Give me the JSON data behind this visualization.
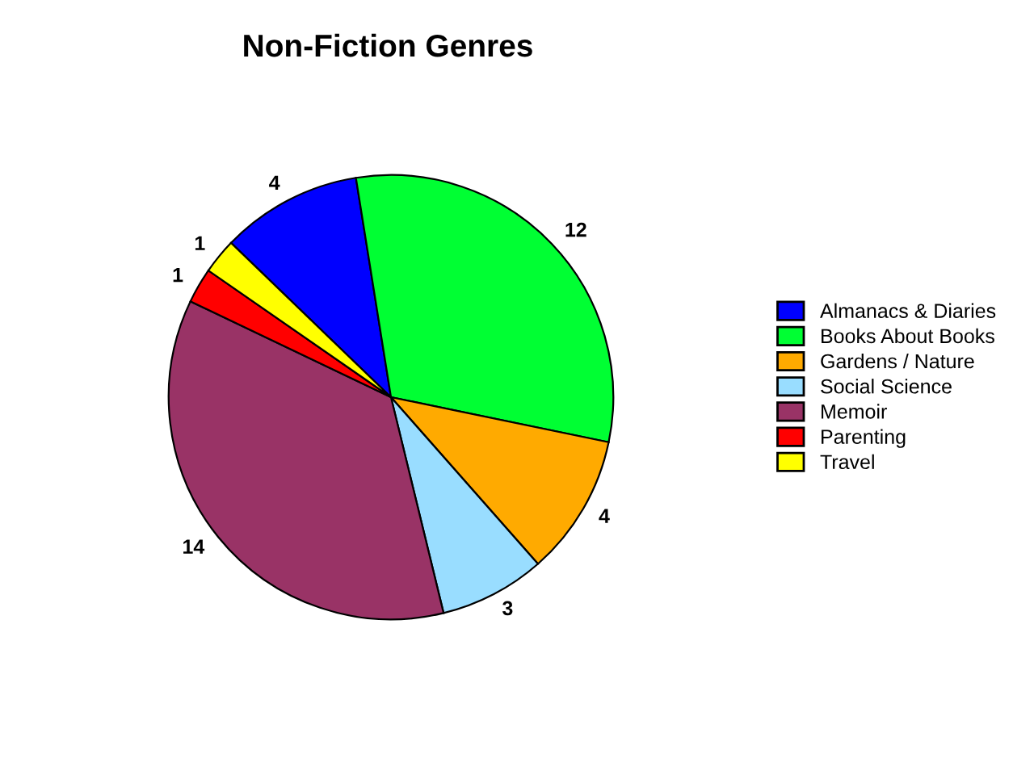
{
  "chart_data": {
    "type": "pie",
    "title": "Non-Fiction Genres",
    "categories": [
      "Almanacs & Diaries",
      "Books About Books",
      "Gardens / Nature",
      "Social Science",
      "Memoir",
      "Parenting",
      "Travel"
    ],
    "values": [
      4,
      12,
      4,
      3,
      14,
      1,
      1
    ],
    "colors": [
      "#0000ff",
      "#00ff33",
      "#ffaa00",
      "#99ddff",
      "#993366",
      "#ff0000",
      "#ffff00"
    ],
    "data_labels": true,
    "legend": "right"
  }
}
